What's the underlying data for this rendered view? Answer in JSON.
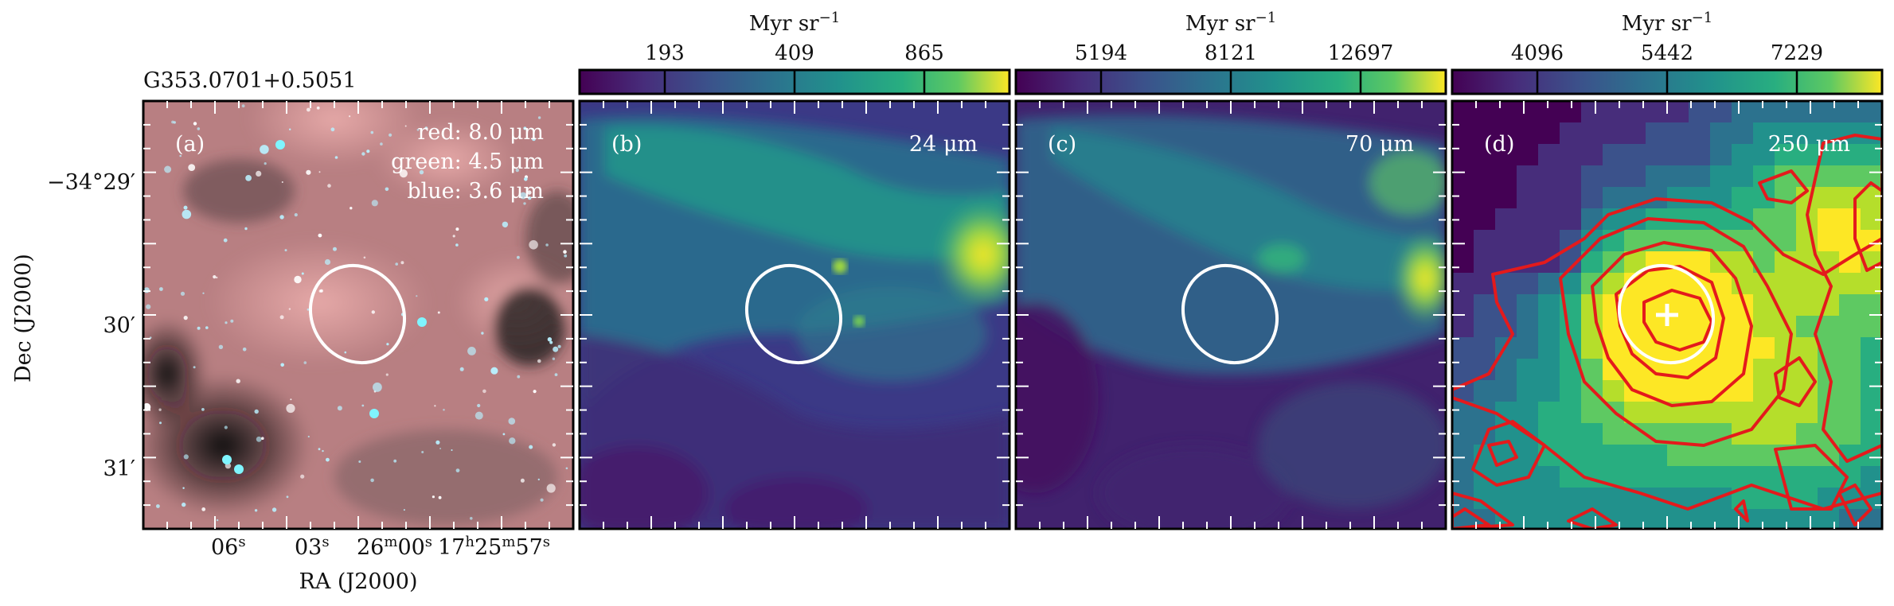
{
  "figure": {
    "source_name": "G353.0701+0.5051",
    "colorbar_unit": "Myr sr",
    "colorbar_unit_exp": "−1",
    "xlabel": "RA (J2000)",
    "ylabel": "Dec (J2000)",
    "ra_ticks": [
      {
        "main": "06",
        "sup": "s"
      },
      {
        "main": "03",
        "sup": "s"
      },
      {
        "main": "26",
        "sup": "m"
      },
      {
        "main": "00",
        "sup": "s"
      },
      {
        "main": "17",
        "sup": "h"
      },
      {
        "main": "25",
        "sup": "m"
      },
      {
        "main": "57",
        "sup": "s"
      }
    ],
    "dec_ticks": [
      "−34°29′",
      "30′",
      "31′"
    ]
  },
  "panels": [
    {
      "id": "a",
      "label": "(a)",
      "legend": [
        "red: 8.0 μm",
        "green: 4.5 μm",
        "blue: 3.6 μm"
      ],
      "colors": {
        "base": "#b87f82",
        "dark": "#1b1518",
        "star": "#b9f1ff"
      }
    },
    {
      "id": "b",
      "label": "(b)",
      "band": "24 μm",
      "colorbar_ticks": [
        "193",
        "409",
        "865"
      ],
      "colors": {
        "low": "#3b3986",
        "mid": "#218e8d",
        "high": "#fde725"
      }
    },
    {
      "id": "c",
      "label": "(c)",
      "band": "70 μm",
      "colorbar_ticks": [
        "5194",
        "8121",
        "12697"
      ],
      "colors": {
        "low": "#41226e",
        "mid": "#2a788e",
        "high": "#fde725"
      }
    },
    {
      "id": "d",
      "label": "(d)",
      "band": "250 μm",
      "colorbar_ticks": [
        "4096",
        "5442",
        "7229"
      ],
      "colors": {
        "low": "#46327e",
        "mid": "#21a685",
        "high": "#fde725",
        "contour": "#e41a1c",
        "marker": "#ffffff"
      }
    }
  ]
}
